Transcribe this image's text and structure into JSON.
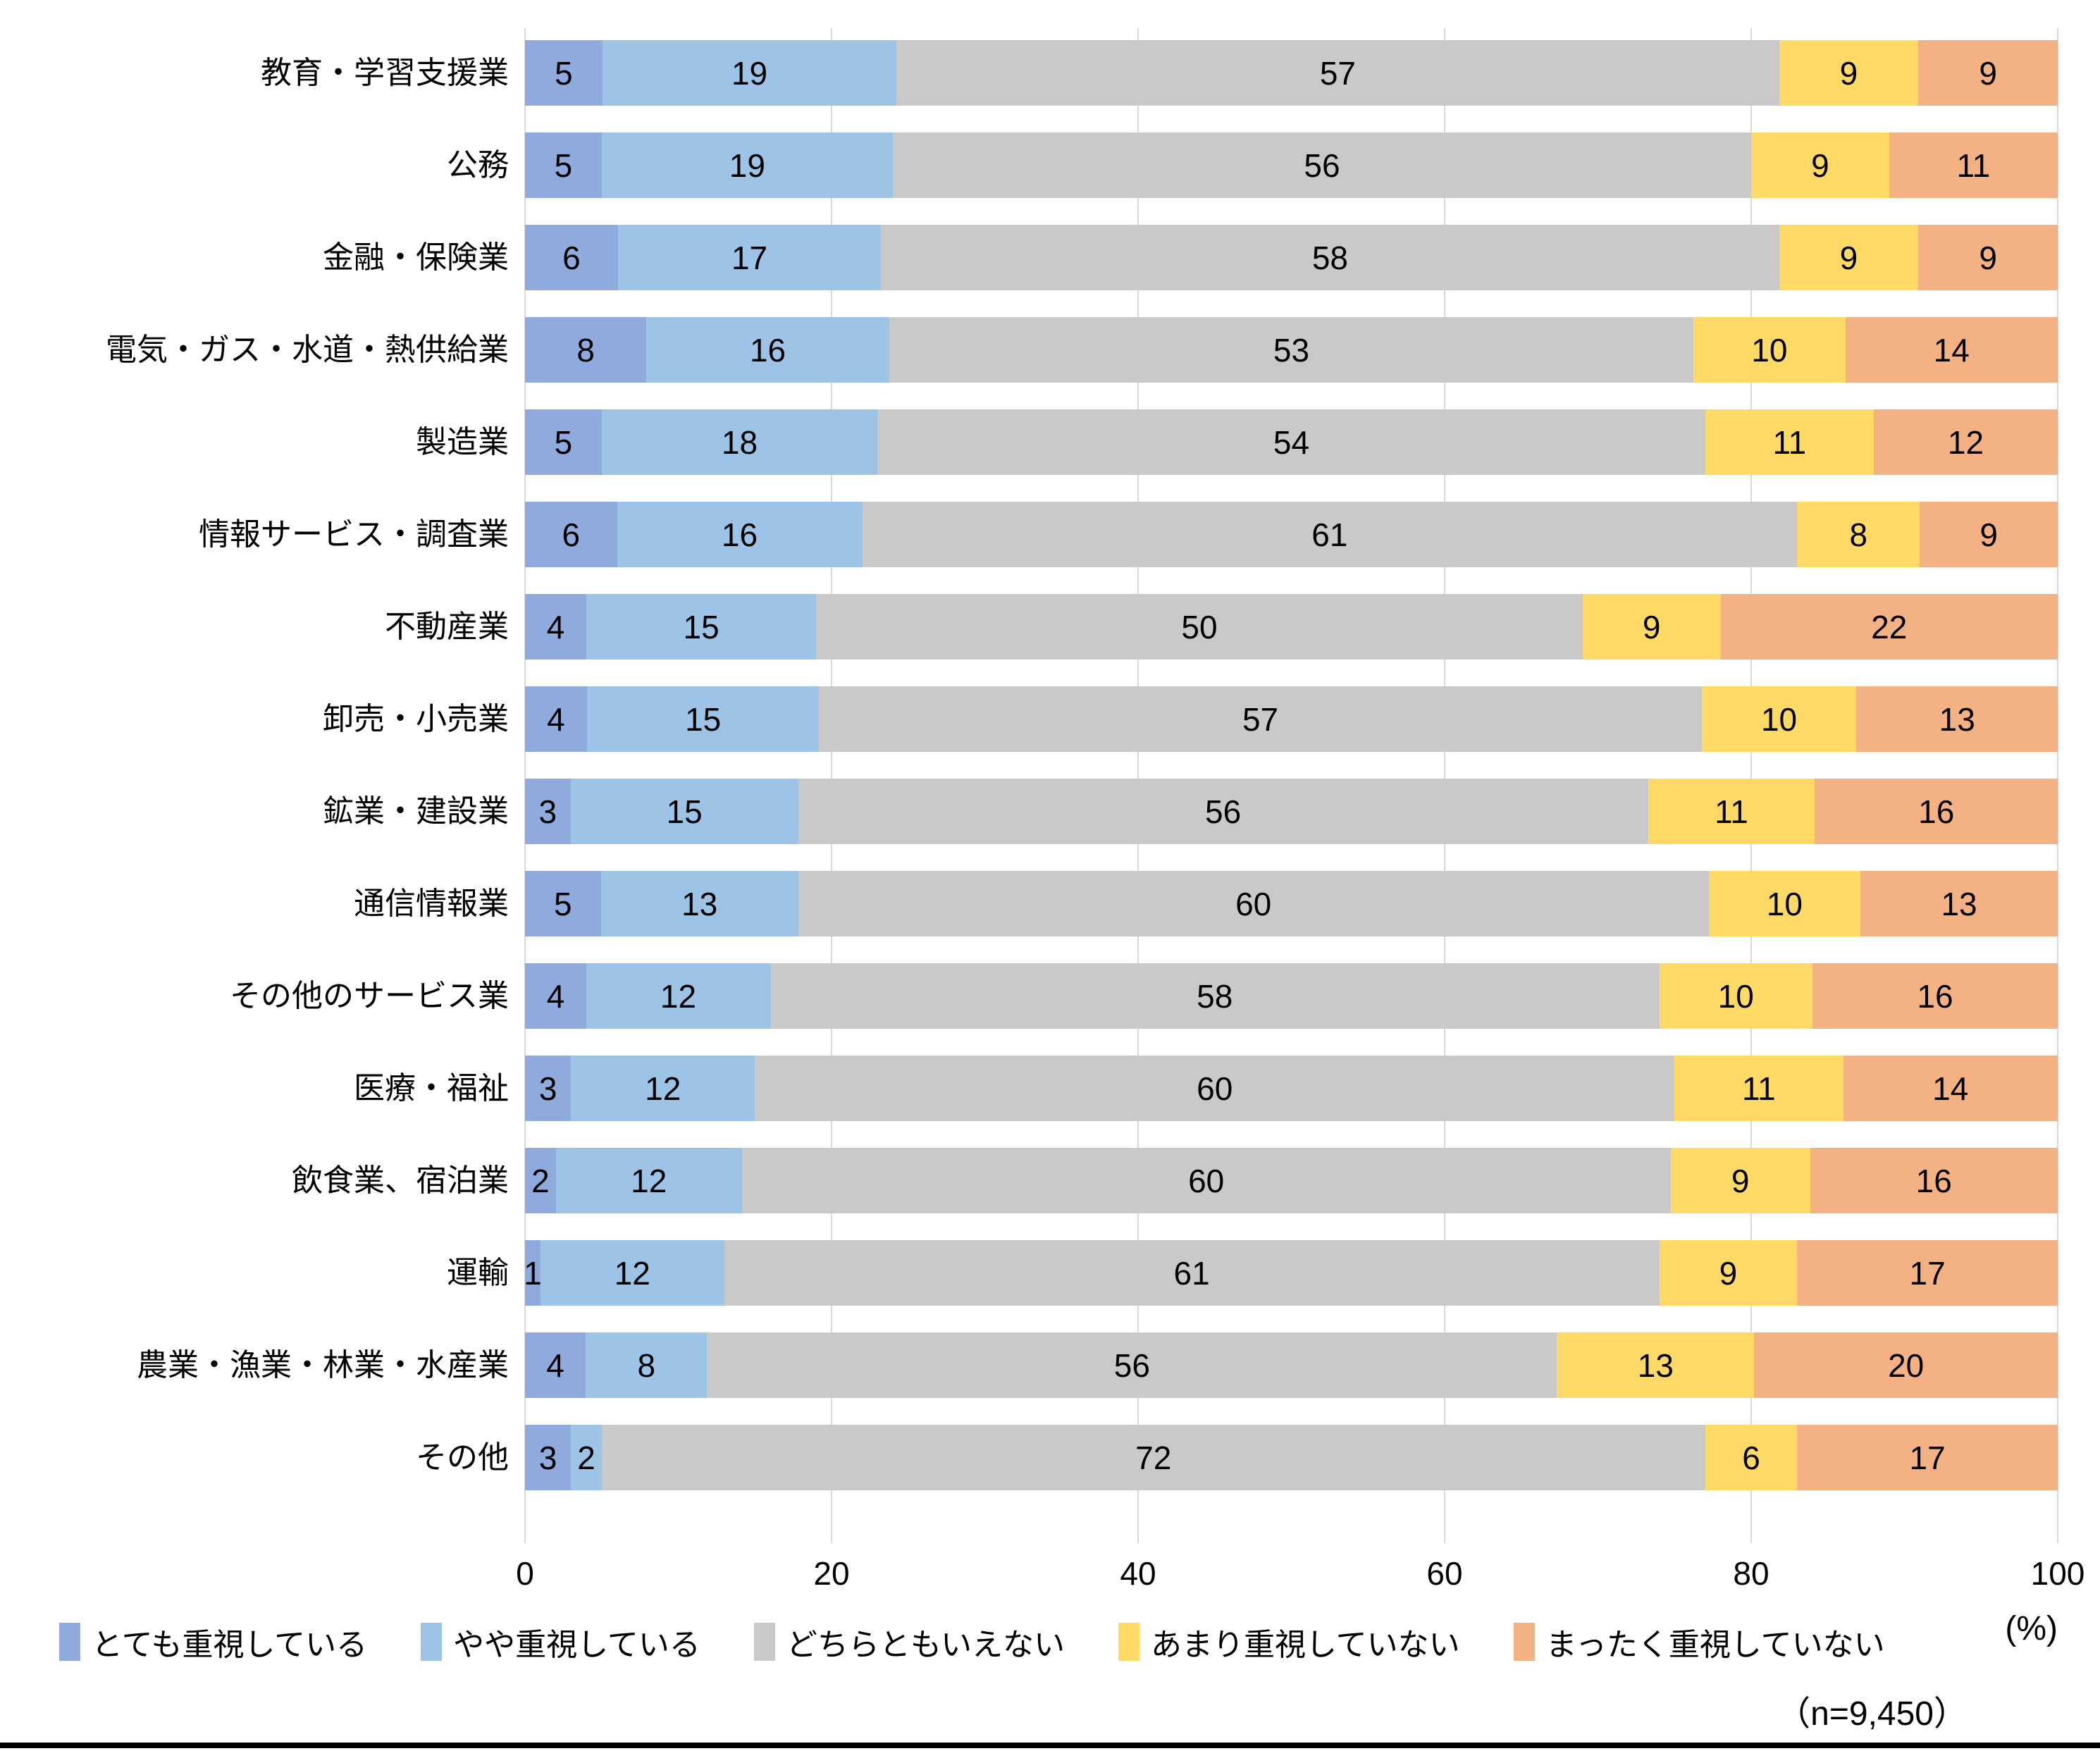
{
  "chart_data": {
    "type": "bar",
    "orientation": "horizontal",
    "stacked": true,
    "title": "",
    "xlabel": "",
    "ylabel": "",
    "xlim": [
      0,
      100
    ],
    "grid": true,
    "legend_position": "bottom",
    "unit_label": "(%)",
    "sample_size_label": "（n=9,450）",
    "x_ticks": [
      "0",
      "20",
      "40",
      "60",
      "80",
      "100"
    ],
    "series": [
      {
        "name": "とても重視している",
        "color": "#8FAADC"
      },
      {
        "name": "やや重視している",
        "color": "#9DC3E6"
      },
      {
        "name": "どちらともいえない",
        "color": "#C9C9C9"
      },
      {
        "name": "あまり重視していない",
        "color": "#FFD966"
      },
      {
        "name": "まったく重視していない",
        "color": "#F4B183"
      }
    ],
    "categories": [
      "教育・学習支援業",
      "公務",
      "金融・保険業",
      "電気・ガス・水道・熱供給業",
      "製造業",
      "情報サービス・調査業",
      "不動産業",
      "卸売・小売業",
      "鉱業・建設業",
      "通信情報業",
      "その他のサービス業",
      "医療・福祉",
      "飲食業、宿泊業",
      "運輸",
      "農業・漁業・林業・水産業",
      "その他"
    ],
    "values": [
      [
        5,
        19,
        57,
        9,
        9
      ],
      [
        5,
        19,
        56,
        9,
        11
      ],
      [
        6,
        17,
        58,
        9,
        9
      ],
      [
        8,
        16,
        53,
        10,
        14
      ],
      [
        5,
        18,
        54,
        11,
        12
      ],
      [
        6,
        16,
        61,
        8,
        9
      ],
      [
        4,
        15,
        50,
        9,
        22
      ],
      [
        4,
        15,
        57,
        10,
        13
      ],
      [
        3,
        15,
        56,
        11,
        16
      ],
      [
        5,
        13,
        60,
        10,
        13
      ],
      [
        4,
        12,
        58,
        10,
        16
      ],
      [
        3,
        12,
        60,
        11,
        14
      ],
      [
        2,
        12,
        60,
        9,
        16
      ],
      [
        1,
        12,
        61,
        9,
        17
      ],
      [
        4,
        8,
        56,
        13,
        20
      ],
      [
        3,
        2,
        72,
        6,
        17
      ]
    ],
    "gridline_color": "#D9D9D9"
  }
}
